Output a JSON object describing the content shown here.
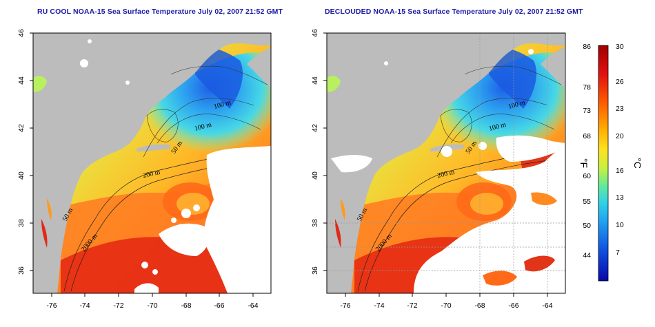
{
  "panels": [
    {
      "id": "left",
      "title": "RU COOL NOAA-15 Sea Surface Temperature July 02, 2007 21:52 GMT",
      "x_ticks": [
        "-76",
        "-74",
        "-72",
        "-70",
        "-68",
        "-66",
        "-64"
      ],
      "y_ticks": [
        "46",
        "44",
        "42",
        "40",
        "38",
        "36"
      ],
      "contour_labels": [
        "100 m",
        "100 m",
        "50 m",
        "200 m",
        "50 m",
        "2000 m"
      ]
    },
    {
      "id": "right",
      "title": "DECLOUDED NOAA-15 Sea Surface Temperature July 02, 2007 21:52 GMT",
      "x_ticks": [
        "-76",
        "-74",
        "-72",
        "-70",
        "-68",
        "-66",
        "-64"
      ],
      "y_ticks": [
        "46",
        "44",
        "42",
        "40",
        "38",
        "36"
      ],
      "contour_labels": [
        "100 m",
        "100 m",
        "50 m",
        "200 m",
        "50 m",
        "2000 m"
      ]
    }
  ],
  "colorbar": {
    "fahrenheit_labels": [
      "86",
      "78",
      "73",
      "68",
      "60",
      "55",
      "50",
      "44"
    ],
    "celsius_labels": [
      "30",
      "26",
      "23",
      "20",
      "16",
      "13",
      "10",
      "7"
    ],
    "fahrenheit_unit": "°F",
    "celsius_unit": "°C",
    "colors": [
      "#a00000",
      "#e01010",
      "#ff6000",
      "#ffb000",
      "#ffe020",
      "#c8f040",
      "#60e8a0",
      "#30d0e8",
      "#20a0f0",
      "#1050e0",
      "#0808a8"
    ]
  },
  "map_colors": {
    "land": "#bcbcbc",
    "cloud": "#ffffff",
    "grid": "#999999"
  }
}
